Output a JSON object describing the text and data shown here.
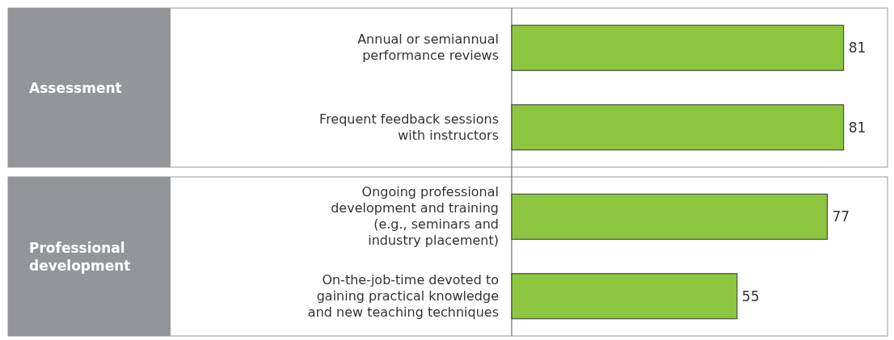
{
  "chart_data": {
    "type": "bar",
    "orientation": "horizontal",
    "data_labels": true,
    "categories": [
      "Annual or semiannual performance reviews",
      "Frequent feedback sessions with instructors",
      "Ongoing professional development and training (e.g., seminars and industry placement)",
      "On-the-job-time devoted to gaining practical knowledge and new teaching techniques"
    ],
    "values": [
      81,
      81,
      77,
      55
    ],
    "color": "#8dc63f",
    "annotations": [
      "Assessment",
      "Professional development"
    ]
  }
}
